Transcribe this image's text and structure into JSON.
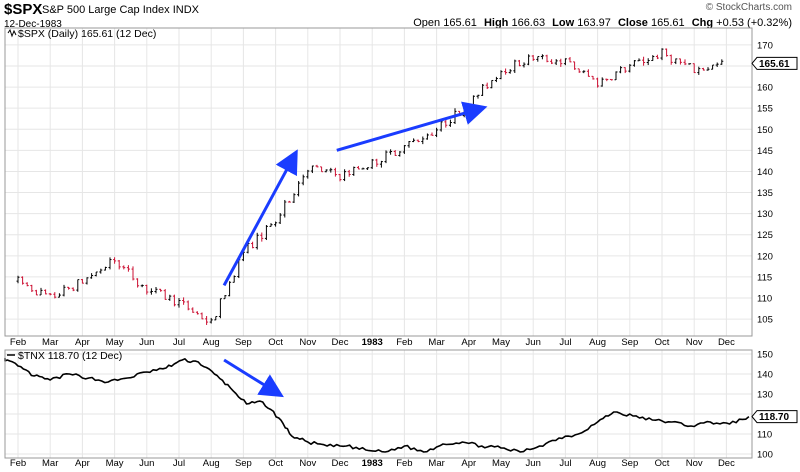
{
  "header": {
    "symbol": "$SPX",
    "name": "S&P 500 Large Cap Index",
    "exchange": "INDX",
    "date": "12-Dec-1983",
    "credit": "© StockCharts.com",
    "open_label": "Open",
    "open_value": "165.61",
    "high_label": "High",
    "high_value": "166.63",
    "low_label": "Low",
    "low_value": "163.97",
    "close_label": "Close",
    "close_value": "165.61",
    "chg_label": "Chg",
    "chg_value": "+0.53 (+0.32%)"
  },
  "colors": {
    "up": "#000000",
    "down": "#cc1133",
    "arrow": "#1a3cff",
    "grid": "#e6e6e6",
    "frame": "#999999"
  },
  "chart_data": [
    {
      "type": "ohlc",
      "legend": "$SPX (Daily) 165.61 (12 Dec)",
      "last_value_label": "165.61",
      "y_ticks": [
        105,
        110,
        115,
        120,
        125,
        130,
        135,
        140,
        145,
        150,
        155,
        160,
        165,
        170
      ],
      "ylim": [
        101,
        174
      ],
      "x_month_labels": [
        "Feb",
        "Mar",
        "Apr",
        "May",
        "Jun",
        "Jul",
        "Aug",
        "Sep",
        "Oct",
        "Nov",
        "Dec",
        "1983",
        "Feb",
        "Mar",
        "Apr",
        "May",
        "Jun",
        "Jul",
        "Aug",
        "Sep",
        "Oct",
        "Nov",
        "Dec"
      ],
      "x_label_bold": "1983",
      "close_path_monthly": [
        {
          "month": "1982-02",
          "close": 114
        },
        {
          "month": "1982-03",
          "close": 110
        },
        {
          "month": "1982-04",
          "close": 114
        },
        {
          "month": "1982-05",
          "close": 119
        },
        {
          "month": "1982-06",
          "close": 112
        },
        {
          "month": "1982-07",
          "close": 109
        },
        {
          "month": "1982-08",
          "close": 104
        },
        {
          "month": "1982-09",
          "close": 121
        },
        {
          "month": "1982-10",
          "close": 128
        },
        {
          "month": "1982-11",
          "close": 141
        },
        {
          "month": "1982-12",
          "close": 139
        },
        {
          "month": "1983-01",
          "close": 142
        },
        {
          "month": "1983-02",
          "close": 146
        },
        {
          "month": "1983-03",
          "close": 150
        },
        {
          "month": "1983-04",
          "close": 156
        },
        {
          "month": "1983-05",
          "close": 164
        },
        {
          "month": "1983-06",
          "close": 167
        },
        {
          "month": "1983-07",
          "close": 166
        },
        {
          "month": "1983-08",
          "close": 161
        },
        {
          "month": "1983-09",
          "close": 165
        },
        {
          "month": "1983-10",
          "close": 168
        },
        {
          "month": "1983-11",
          "close": 164
        },
        {
          "month": "1983-12",
          "close": 165.61
        }
      ],
      "arrows": [
        {
          "from": {
            "month": 6.4,
            "value": 113
          },
          "to": {
            "month": 8.6,
            "value": 144
          }
        },
        {
          "from": {
            "month": 9.9,
            "value": 145
          },
          "to": {
            "month": 14.4,
            "value": 155
          }
        }
      ]
    },
    {
      "type": "line",
      "legend": "$TNX 118.70 (12 Dec)",
      "last_value_label": "118.70",
      "y_ticks": [
        100,
        110,
        120,
        130,
        140,
        150
      ],
      "ylim": [
        98,
        152
      ],
      "x_month_labels": [
        "Feb",
        "Mar",
        "Apr",
        "May",
        "Jun",
        "Jul",
        "Aug",
        "Sep",
        "Oct",
        "Nov",
        "Dec",
        "1983",
        "Feb",
        "Mar",
        "Apr",
        "May",
        "Jun",
        "Jul",
        "Aug",
        "Sep",
        "Oct",
        "Nov",
        "Dec"
      ],
      "x_label_bold": "1983",
      "series": [
        {
          "values": [
            {
              "month": -0.5,
              "value": 148
            },
            {
              "month": 0.0,
              "value": 144
            },
            {
              "month": 0.5,
              "value": 139
            },
            {
              "month": 1.0,
              "value": 137
            },
            {
              "month": 1.6,
              "value": 140
            },
            {
              "month": 2.2,
              "value": 138
            },
            {
              "month": 2.8,
              "value": 136
            },
            {
              "month": 3.4,
              "value": 138
            },
            {
              "month": 4.0,
              "value": 141
            },
            {
              "month": 4.6,
              "value": 143
            },
            {
              "month": 5.1,
              "value": 147
            },
            {
              "month": 5.6,
              "value": 146
            },
            {
              "month": 6.1,
              "value": 140
            },
            {
              "month": 6.6,
              "value": 133
            },
            {
              "month": 7.1,
              "value": 125
            },
            {
              "month": 7.6,
              "value": 126
            },
            {
              "month": 8.1,
              "value": 118
            },
            {
              "month": 8.5,
              "value": 109
            },
            {
              "month": 9.0,
              "value": 106
            },
            {
              "month": 9.6,
              "value": 104
            },
            {
              "month": 10.2,
              "value": 104
            },
            {
              "month": 10.8,
              "value": 102
            },
            {
              "month": 11.4,
              "value": 101
            },
            {
              "month": 12.0,
              "value": 104
            },
            {
              "month": 12.6,
              "value": 101
            },
            {
              "month": 13.2,
              "value": 105
            },
            {
              "month": 13.8,
              "value": 106
            },
            {
              "month": 14.4,
              "value": 104
            },
            {
              "month": 15.0,
              "value": 103
            },
            {
              "month": 15.6,
              "value": 101
            },
            {
              "month": 16.2,
              "value": 104
            },
            {
              "month": 16.8,
              "value": 108
            },
            {
              "month": 17.4,
              "value": 110
            },
            {
              "month": 18.0,
              "value": 116
            },
            {
              "month": 18.5,
              "value": 121
            },
            {
              "month": 19.1,
              "value": 119
            },
            {
              "month": 19.7,
              "value": 117
            },
            {
              "month": 20.3,
              "value": 116
            },
            {
              "month": 20.9,
              "value": 114
            },
            {
              "month": 21.5,
              "value": 116
            },
            {
              "month": 22.1,
              "value": 115
            },
            {
              "month": 22.7,
              "value": 118.7
            }
          ]
        }
      ],
      "arrows": [
        {
          "from": {
            "month": 6.4,
            "value": 147
          },
          "to": {
            "month": 8.1,
            "value": 130
          }
        }
      ]
    }
  ]
}
